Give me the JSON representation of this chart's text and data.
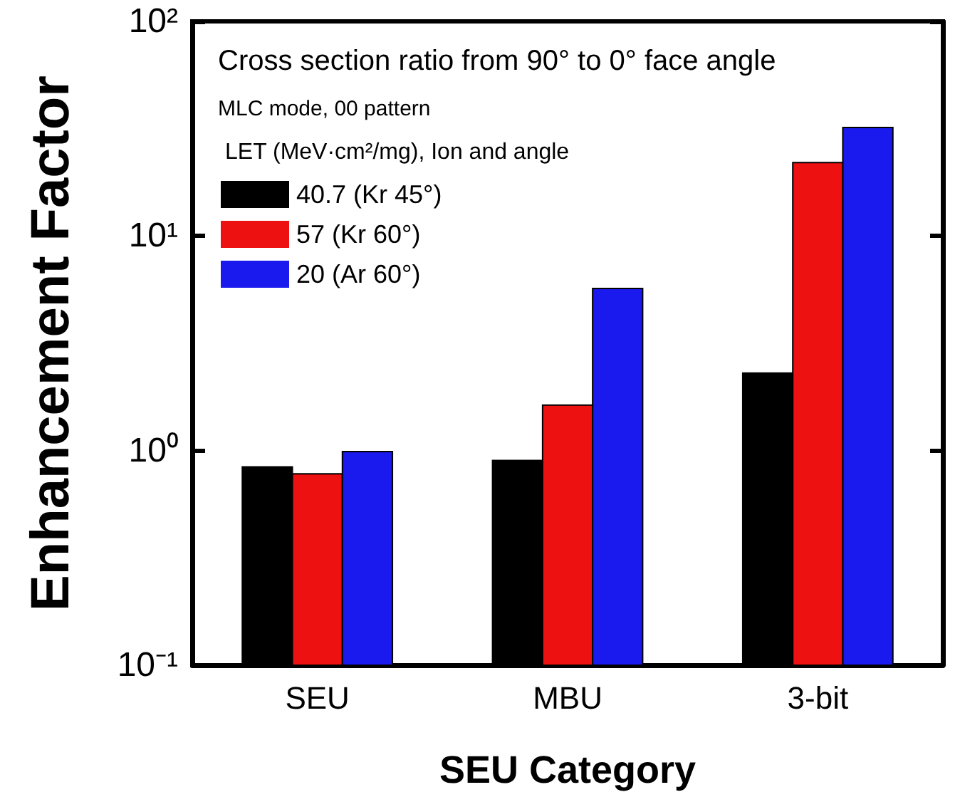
{
  "chart_data": {
    "type": "bar",
    "title": "Cross section ratio from 90° to 0° face angle",
    "subtitle": "MLC mode, 00 pattern",
    "legend_title": "LET (MeV·cm²/mg), Ion and angle",
    "xlabel": "SEU Category",
    "ylabel": "Enhancement Factor",
    "categories": [
      "SEU",
      "MBU",
      "3-bit"
    ],
    "series": [
      {
        "name": "40.7 (Kr 45°)",
        "color": "#000000",
        "values": [
          0.84,
          0.9,
          2.3
        ]
      },
      {
        "name": "57 (Kr 60°)",
        "color": "#ee1111",
        "values": [
          0.78,
          1.63,
          22
        ]
      },
      {
        "name": "20 (Ar 60°)",
        "color": "#1a1aee",
        "values": [
          0.99,
          5.7,
          32
        ]
      }
    ],
    "log": true,
    "ylim": [
      0.1,
      100
    ],
    "yticks": [
      {
        "value": 0.1,
        "label": "10⁻¹"
      },
      {
        "value": 1,
        "label": "10⁰"
      },
      {
        "value": 10,
        "label": "10¹"
      },
      {
        "value": 100,
        "label": "10²"
      }
    ],
    "legend": "top left",
    "grid": false
  }
}
